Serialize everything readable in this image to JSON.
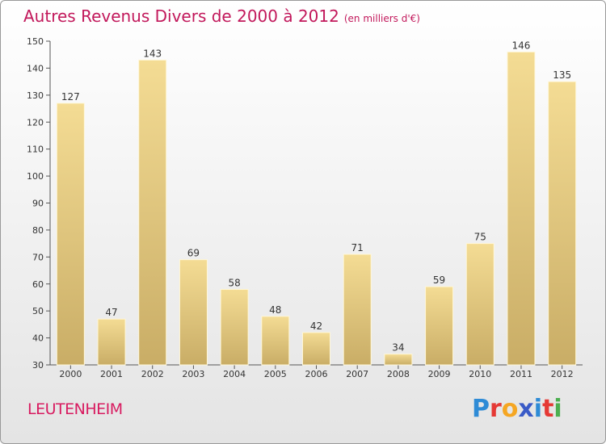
{
  "header": {
    "title": "Autres Revenus Divers de 2000 à 2012",
    "subtitle": "(en milliers d'€)"
  },
  "commune_name": "LEUTENHEIM",
  "logo": {
    "text": "Proxiti",
    "letter_colors": [
      "#2e8bd6",
      "#e53935",
      "#f5a623",
      "#3a5bc7",
      "#2e8bd6",
      "#e53935",
      "#4caf50"
    ]
  },
  "colors": {
    "bar_top": "#f4dc94",
    "bar_bottom": "#c9ad66",
    "title": "#c2185b"
  },
  "chart_data": {
    "type": "bar",
    "title": "Autres Revenus Divers de 2000 à 2012",
    "categories": [
      "2000",
      "2001",
      "2002",
      "2003",
      "2004",
      "2005",
      "2006",
      "2007",
      "2008",
      "2009",
      "2010",
      "2011",
      "2012"
    ],
    "values": [
      127,
      47,
      143,
      69,
      58,
      48,
      42,
      71,
      34,
      59,
      75,
      146,
      135
    ],
    "ylim": [
      30,
      150
    ],
    "yticks": [
      30,
      40,
      50,
      60,
      70,
      80,
      90,
      100,
      110,
      120,
      130,
      140,
      150
    ],
    "grid": false,
    "xlabel": "",
    "ylabel": ""
  }
}
